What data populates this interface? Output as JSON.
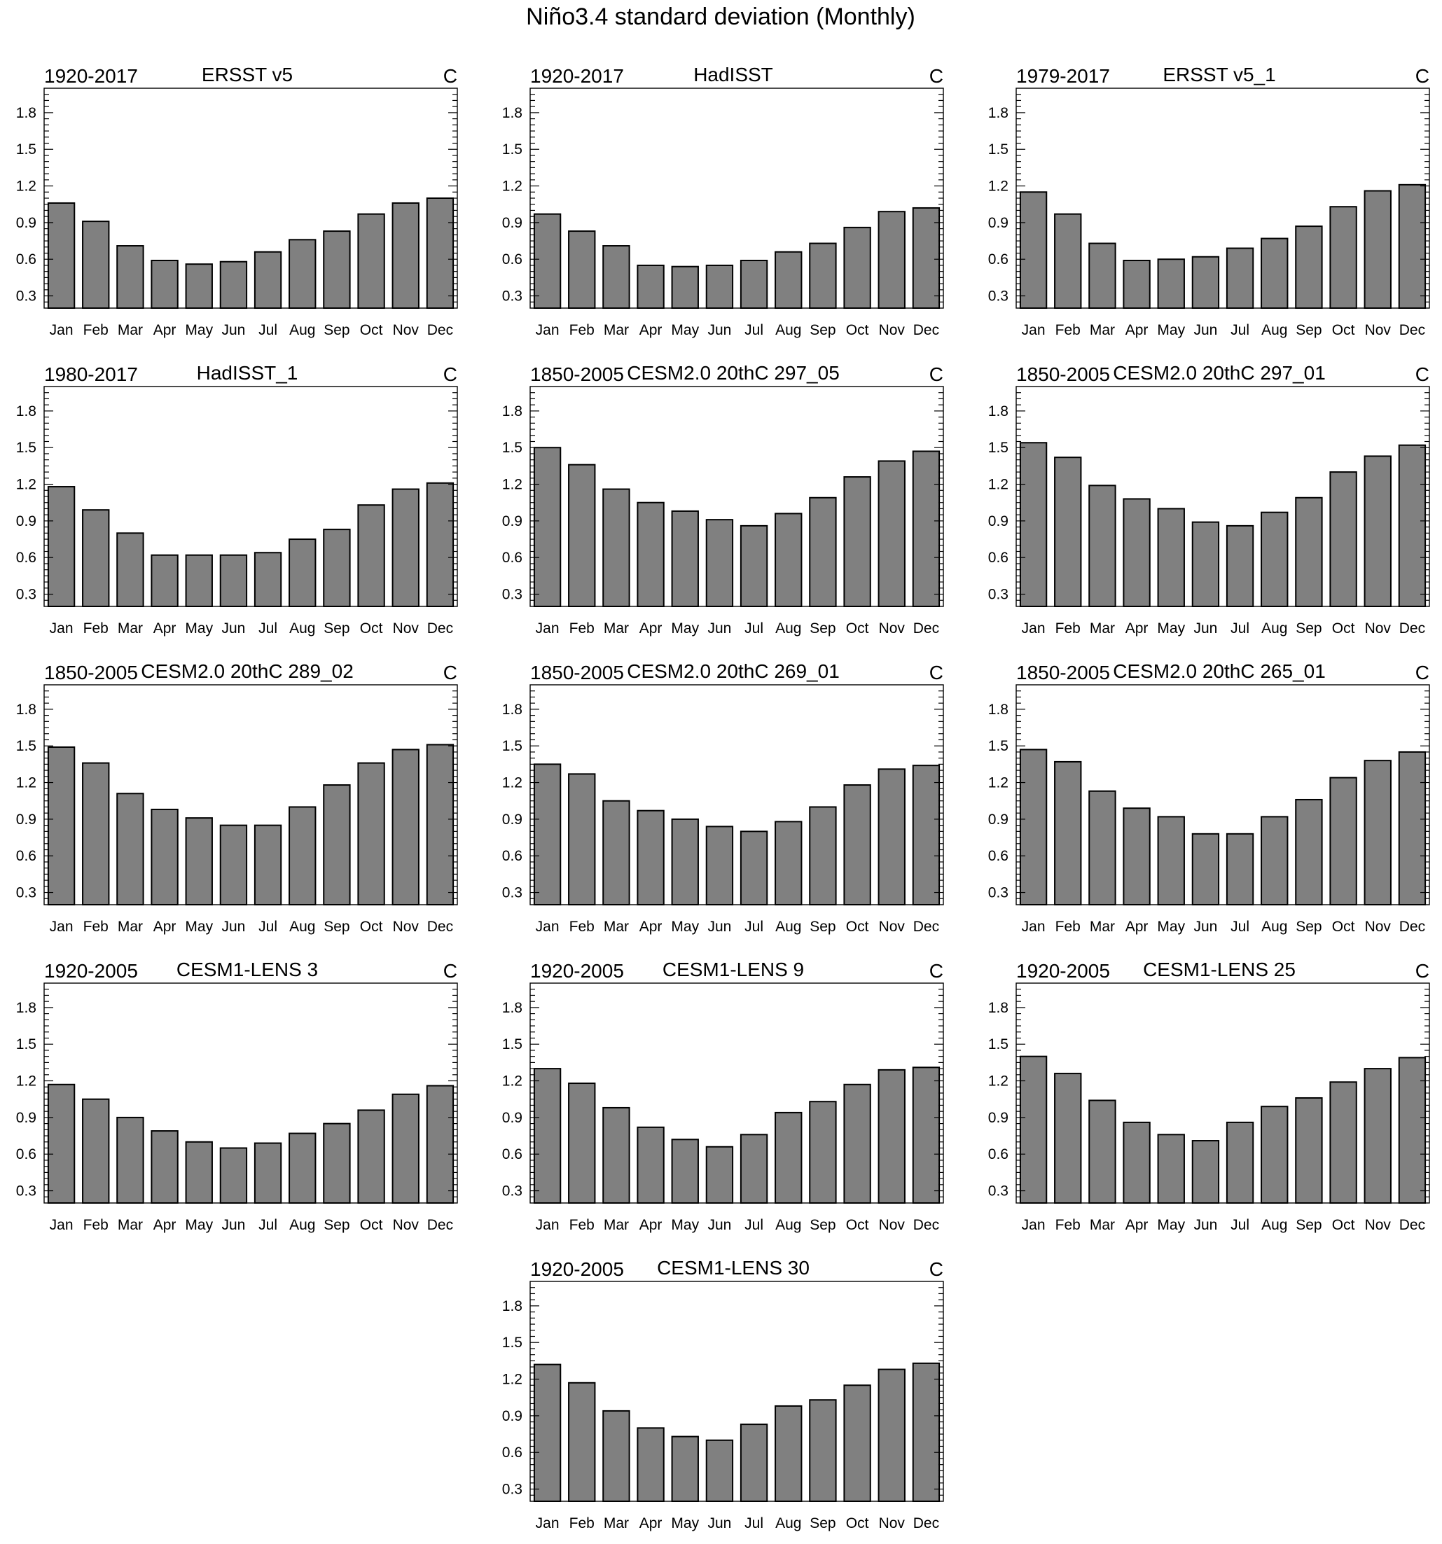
{
  "page_title": "Niño3.4 standard deviation (Monthly)",
  "chart_data": [
    {
      "type": "bar",
      "period": "1920-2017",
      "title": "ERSST v5",
      "units": "C",
      "categories": [
        "Jan",
        "Feb",
        "Mar",
        "Apr",
        "May",
        "Jun",
        "Jul",
        "Aug",
        "Sep",
        "Oct",
        "Nov",
        "Dec"
      ],
      "values": [
        1.06,
        0.91,
        0.71,
        0.59,
        0.56,
        0.58,
        0.66,
        0.76,
        0.83,
        0.97,
        1.06,
        1.1
      ],
      "yticks": [
        0.3,
        0.6,
        0.9,
        1.2,
        1.5,
        1.8
      ],
      "ylim": [
        0.2,
        2.0
      ]
    },
    {
      "type": "bar",
      "period": "1920-2017",
      "title": "HadISST",
      "units": "C",
      "categories": [
        "Jan",
        "Feb",
        "Mar",
        "Apr",
        "May",
        "Jun",
        "Jul",
        "Aug",
        "Sep",
        "Oct",
        "Nov",
        "Dec"
      ],
      "values": [
        0.97,
        0.83,
        0.71,
        0.55,
        0.54,
        0.55,
        0.59,
        0.66,
        0.73,
        0.86,
        0.99,
        1.02
      ],
      "yticks": [
        0.3,
        0.6,
        0.9,
        1.2,
        1.5,
        1.8
      ],
      "ylim": [
        0.2,
        2.0
      ]
    },
    {
      "type": "bar",
      "period": "1979-2017",
      "title": "ERSST v5_1",
      "units": "C",
      "categories": [
        "Jan",
        "Feb",
        "Mar",
        "Apr",
        "May",
        "Jun",
        "Jul",
        "Aug",
        "Sep",
        "Oct",
        "Nov",
        "Dec"
      ],
      "values": [
        1.15,
        0.97,
        0.73,
        0.59,
        0.6,
        0.62,
        0.69,
        0.77,
        0.87,
        1.03,
        1.16,
        1.21
      ],
      "yticks": [
        0.3,
        0.6,
        0.9,
        1.2,
        1.5,
        1.8
      ],
      "ylim": [
        0.2,
        2.0
      ]
    },
    {
      "type": "bar",
      "period": "1980-2017",
      "title": "HadISST_1",
      "units": "C",
      "categories": [
        "Jan",
        "Feb",
        "Mar",
        "Apr",
        "May",
        "Jun",
        "Jul",
        "Aug",
        "Sep",
        "Oct",
        "Nov",
        "Dec"
      ],
      "values": [
        1.18,
        0.99,
        0.8,
        0.62,
        0.62,
        0.62,
        0.64,
        0.75,
        0.83,
        1.03,
        1.16,
        1.21
      ],
      "yticks": [
        0.3,
        0.6,
        0.9,
        1.2,
        1.5,
        1.8
      ],
      "ylim": [
        0.2,
        2.0
      ]
    },
    {
      "type": "bar",
      "period": "1850-2005",
      "title": "CESM2.0 20thC 297_05",
      "units": "C",
      "categories": [
        "Jan",
        "Feb",
        "Mar",
        "Apr",
        "May",
        "Jun",
        "Jul",
        "Aug",
        "Sep",
        "Oct",
        "Nov",
        "Dec"
      ],
      "values": [
        1.5,
        1.36,
        1.16,
        1.05,
        0.98,
        0.91,
        0.86,
        0.96,
        1.09,
        1.26,
        1.39,
        1.47
      ],
      "yticks": [
        0.3,
        0.6,
        0.9,
        1.2,
        1.5,
        1.8
      ],
      "ylim": [
        0.2,
        2.0
      ]
    },
    {
      "type": "bar",
      "period": "1850-2005",
      "title": "CESM2.0 20thC 297_01",
      "units": "C",
      "categories": [
        "Jan",
        "Feb",
        "Mar",
        "Apr",
        "May",
        "Jun",
        "Jul",
        "Aug",
        "Sep",
        "Oct",
        "Nov",
        "Dec"
      ],
      "values": [
        1.54,
        1.42,
        1.19,
        1.08,
        1.0,
        0.89,
        0.86,
        0.97,
        1.09,
        1.3,
        1.43,
        1.52
      ],
      "yticks": [
        0.3,
        0.6,
        0.9,
        1.2,
        1.5,
        1.8
      ],
      "ylim": [
        0.2,
        2.0
      ]
    },
    {
      "type": "bar",
      "period": "1850-2005",
      "title": "CESM2.0 20thC 289_02",
      "units": "C",
      "categories": [
        "Jan",
        "Feb",
        "Mar",
        "Apr",
        "May",
        "Jun",
        "Jul",
        "Aug",
        "Sep",
        "Oct",
        "Nov",
        "Dec"
      ],
      "values": [
        1.49,
        1.36,
        1.11,
        0.98,
        0.91,
        0.85,
        0.85,
        1.0,
        1.18,
        1.36,
        1.47,
        1.51
      ],
      "yticks": [
        0.3,
        0.6,
        0.9,
        1.2,
        1.5,
        1.8
      ],
      "ylim": [
        0.2,
        2.0
      ]
    },
    {
      "type": "bar",
      "period": "1850-2005",
      "title": "CESM2.0 20thC 269_01",
      "units": "C",
      "categories": [
        "Jan",
        "Feb",
        "Mar",
        "Apr",
        "May",
        "Jun",
        "Jul",
        "Aug",
        "Sep",
        "Oct",
        "Nov",
        "Dec"
      ],
      "values": [
        1.35,
        1.27,
        1.05,
        0.97,
        0.9,
        0.84,
        0.8,
        0.88,
        1.0,
        1.18,
        1.31,
        1.34
      ],
      "yticks": [
        0.3,
        0.6,
        0.9,
        1.2,
        1.5,
        1.8
      ],
      "ylim": [
        0.2,
        2.0
      ]
    },
    {
      "type": "bar",
      "period": "1850-2005",
      "title": "CESM2.0 20thC 265_01",
      "units": "C",
      "categories": [
        "Jan",
        "Feb",
        "Mar",
        "Apr",
        "May",
        "Jun",
        "Jul",
        "Aug",
        "Sep",
        "Oct",
        "Nov",
        "Dec"
      ],
      "values": [
        1.47,
        1.37,
        1.13,
        0.99,
        0.92,
        0.78,
        0.78,
        0.92,
        1.06,
        1.24,
        1.38,
        1.45
      ],
      "yticks": [
        0.3,
        0.6,
        0.9,
        1.2,
        1.5,
        1.8
      ],
      "ylim": [
        0.2,
        2.0
      ]
    },
    {
      "type": "bar",
      "period": "1920-2005",
      "title": "CESM1-LENS 3",
      "units": "C",
      "categories": [
        "Jan",
        "Feb",
        "Mar",
        "Apr",
        "May",
        "Jun",
        "Jul",
        "Aug",
        "Sep",
        "Oct",
        "Nov",
        "Dec"
      ],
      "values": [
        1.17,
        1.05,
        0.9,
        0.79,
        0.7,
        0.65,
        0.69,
        0.77,
        0.85,
        0.96,
        1.09,
        1.16
      ],
      "yticks": [
        0.3,
        0.6,
        0.9,
        1.2,
        1.5,
        1.8
      ],
      "ylim": [
        0.2,
        2.0
      ]
    },
    {
      "type": "bar",
      "period": "1920-2005",
      "title": "CESM1-LENS 9",
      "units": "C",
      "categories": [
        "Jan",
        "Feb",
        "Mar",
        "Apr",
        "May",
        "Jun",
        "Jul",
        "Aug",
        "Sep",
        "Oct",
        "Nov",
        "Dec"
      ],
      "values": [
        1.3,
        1.18,
        0.98,
        0.82,
        0.72,
        0.66,
        0.76,
        0.94,
        1.03,
        1.17,
        1.29,
        1.31
      ],
      "yticks": [
        0.3,
        0.6,
        0.9,
        1.2,
        1.5,
        1.8
      ],
      "ylim": [
        0.2,
        2.0
      ]
    },
    {
      "type": "bar",
      "period": "1920-2005",
      "title": "CESM1-LENS 25",
      "units": "C",
      "categories": [
        "Jan",
        "Feb",
        "Mar",
        "Apr",
        "May",
        "Jun",
        "Jul",
        "Aug",
        "Sep",
        "Oct",
        "Nov",
        "Dec"
      ],
      "values": [
        1.4,
        1.26,
        1.04,
        0.86,
        0.76,
        0.71,
        0.86,
        0.99,
        1.06,
        1.19,
        1.3,
        1.39
      ],
      "yticks": [
        0.3,
        0.6,
        0.9,
        1.2,
        1.5,
        1.8
      ],
      "ylim": [
        0.2,
        2.0
      ]
    },
    {
      "type": "bar",
      "period": "1920-2005",
      "title": "CESM1-LENS 30",
      "units": "C",
      "categories": [
        "Jan",
        "Feb",
        "Mar",
        "Apr",
        "May",
        "Jun",
        "Jul",
        "Aug",
        "Sep",
        "Oct",
        "Nov",
        "Dec"
      ],
      "values": [
        1.32,
        1.17,
        0.94,
        0.8,
        0.73,
        0.7,
        0.83,
        0.98,
        1.03,
        1.15,
        1.28,
        1.33
      ],
      "yticks": [
        0.3,
        0.6,
        0.9,
        1.2,
        1.5,
        1.8
      ],
      "ylim": [
        0.2,
        2.0
      ]
    }
  ]
}
